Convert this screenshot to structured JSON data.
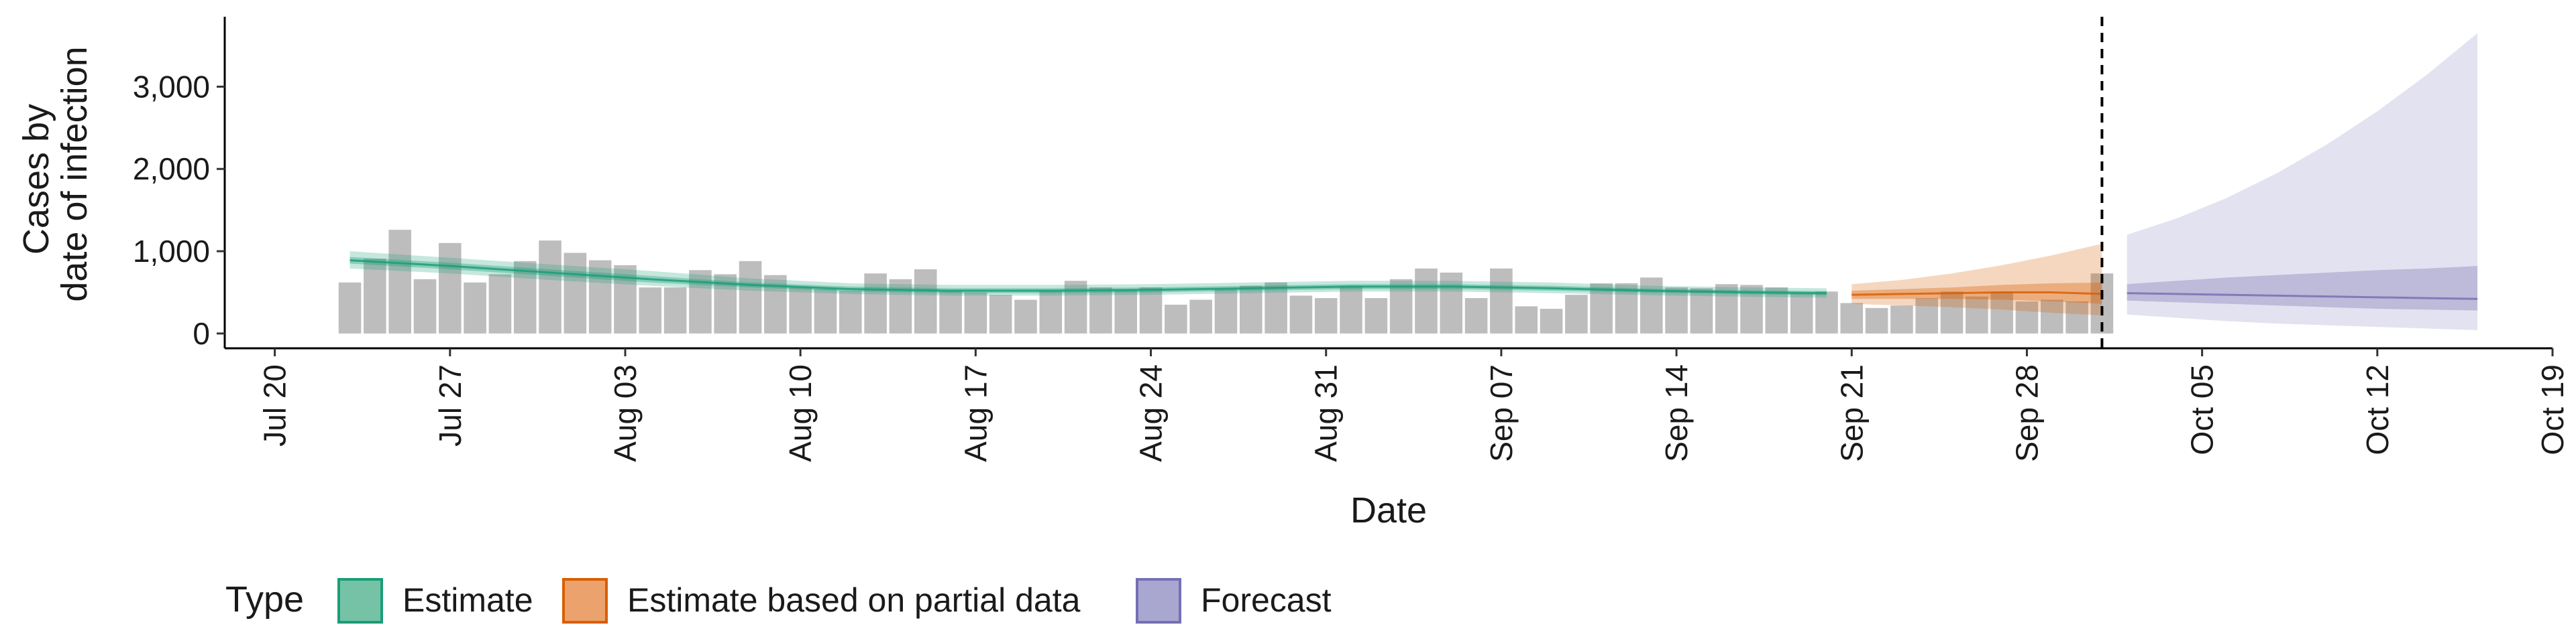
{
  "chart_data": {
    "type": "bar",
    "xlabel": "Date",
    "ylabel_lines": [
      "Cases by",
      "date of infection"
    ],
    "x_ticks": [
      "Jul 20",
      "Jul 27",
      "Aug 03",
      "Aug 10",
      "Aug 17",
      "Aug 24",
      "Aug 31",
      "Sep 07",
      "Sep 14",
      "Sep 21",
      "Sep 28",
      "Oct 05",
      "Oct 12",
      "Oct 19"
    ],
    "y_ticks": [
      0,
      1000,
      2000,
      3000
    ],
    "y_tick_labels": [
      "0",
      "1,000",
      "2,000",
      "3,000"
    ],
    "xlim": [
      "2020-07-18",
      "2020-10-19"
    ],
    "ylim": [
      -180,
      3850
    ],
    "forecast_date": "2020-10-01",
    "legend": {
      "title": "Type",
      "position": "bottom",
      "entries": [
        {
          "label": "Estimate",
          "fill": "#76c2a6",
          "stroke": "#1b9e77"
        },
        {
          "label": "Estimate based on partial data",
          "fill": "#eba26d",
          "stroke": "#d95f02"
        },
        {
          "label": "Forecast",
          "fill": "#a9a7d0",
          "stroke": "#7570b3"
        }
      ]
    },
    "colors": {
      "bars": "#bdbdbd",
      "estimate": "#1b9e77",
      "partial": "#d95f02",
      "forecast": "#7570b3"
    },
    "reported_cases": {
      "start_date": "2020-07-23",
      "values": [
        620,
        910,
        1260,
        660,
        1100,
        620,
        720,
        880,
        1130,
        980,
        890,
        830,
        560,
        560,
        770,
        720,
        880,
        710,
        560,
        540,
        520,
        730,
        660,
        780,
        520,
        500,
        470,
        410,
        520,
        640,
        560,
        530,
        560,
        350,
        410,
        540,
        580,
        620,
        460,
        430,
        580,
        430,
        660,
        790,
        740,
        430,
        790,
        330,
        300,
        470,
        610,
        610,
        680,
        560,
        550,
        600,
        590,
        560,
        490,
        510,
        370,
        310,
        340,
        430,
        510,
        450,
        510,
        390,
        410,
        390,
        730
      ]
    },
    "estimate": {
      "dates": [
        "2020-07-23",
        "2020-07-27",
        "2020-07-31",
        "2020-08-04",
        "2020-08-08",
        "2020-08-12",
        "2020-08-16",
        "2020-08-20",
        "2020-08-24",
        "2020-08-28",
        "2020-09-01",
        "2020-09-05",
        "2020-09-09",
        "2020-09-13",
        "2020-09-17",
        "2020-09-20"
      ],
      "median": [
        890,
        820,
        740,
        660,
        590,
        540,
        520,
        520,
        530,
        550,
        570,
        570,
        550,
        520,
        500,
        490
      ],
      "lower_50": [
        850,
        780,
        700,
        620,
        560,
        510,
        490,
        490,
        500,
        520,
        540,
        540,
        520,
        495,
        475,
        465
      ],
      "upper_50": [
        930,
        860,
        780,
        700,
        620,
        570,
        550,
        550,
        560,
        580,
        600,
        600,
        580,
        545,
        525,
        515
      ],
      "lower_90": [
        790,
        730,
        650,
        580,
        520,
        480,
        460,
        460,
        470,
        490,
        510,
        510,
        490,
        465,
        445,
        435
      ],
      "upper_90": [
        1000,
        920,
        840,
        760,
        670,
        610,
        590,
        590,
        600,
        620,
        640,
        640,
        620,
        580,
        560,
        550
      ]
    },
    "partial": {
      "dates": [
        "2020-09-21",
        "2020-09-23",
        "2020-09-25",
        "2020-09-27",
        "2020-09-29",
        "2020-10-01"
      ],
      "median": [
        470,
        480,
        490,
        500,
        500,
        480
      ],
      "lower_50": [
        420,
        420,
        420,
        410,
        390,
        360
      ],
      "upper_50": [
        520,
        540,
        560,
        590,
        610,
        620
      ],
      "lower_90": [
        360,
        340,
        320,
        290,
        250,
        220
      ],
      "upper_90": [
        600,
        650,
        730,
        830,
        950,
        1090
      ]
    },
    "forecast": {
      "dates": [
        "2020-10-02",
        "2020-10-04",
        "2020-10-06",
        "2020-10-08",
        "2020-10-10",
        "2020-10-12",
        "2020-10-14",
        "2020-10-16"
      ],
      "median": [
        490,
        480,
        470,
        460,
        450,
        440,
        430,
        420
      ],
      "lower_50": [
        400,
        380,
        360,
        340,
        320,
        300,
        290,
        280
      ],
      "upper_50": [
        600,
        640,
        680,
        710,
        740,
        770,
        790,
        820
      ],
      "lower_90": [
        230,
        190,
        150,
        120,
        100,
        80,
        60,
        40
      ],
      "upper_90": [
        1200,
        1400,
        1650,
        1950,
        2300,
        2700,
        3150,
        3650
      ]
    }
  }
}
